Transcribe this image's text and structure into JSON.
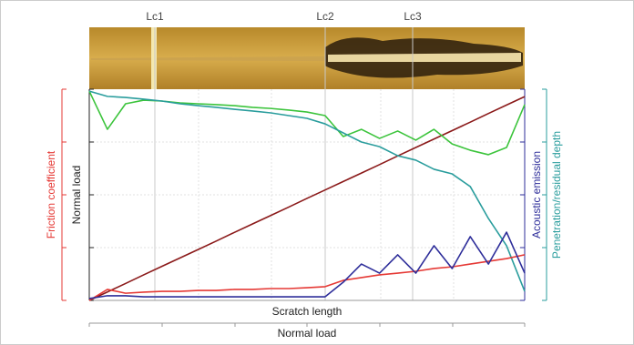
{
  "chart_data": {
    "type": "line",
    "annotations": [
      "Lc1",
      "Lc2",
      "Lc3"
    ],
    "x_label": "Scratch length",
    "x2_label": "Normal load",
    "axes": [
      {
        "label": "Friction coefficient",
        "color": "#e53935"
      },
      {
        "label": "Normal load",
        "color": "#222222"
      },
      {
        "label": "Acoustic emission",
        "color": "#2e2e9a"
      },
      {
        "label": "Penetration/residual depth",
        "color": "#2a9d9d"
      }
    ],
    "ylim": [
      0,
      100
    ],
    "categories": [
      null,
      null,
      null,
      null,
      null,
      null,
      null,
      null,
      null,
      null,
      null,
      null,
      null,
      null,
      null,
      null,
      null,
      null,
      null,
      null,
      null,
      null,
      null,
      null,
      null
    ],
    "series": [
      {
        "color": "#8b1a1a",
        "values": [
          0,
          4,
          8,
          12.1,
          16.1,
          20.1,
          24.1,
          28.1,
          32.2,
          36.2,
          40.2,
          44.2,
          48.3,
          52.3,
          56.3,
          60.3,
          64.3,
          68.4,
          72.4,
          76.4,
          80.4,
          84.4,
          88.5,
          92.5,
          96.5
        ]
      },
      {
        "color": "#3cc43c",
        "values": [
          99.1,
          81.0,
          93.1,
          94.8,
          94.4,
          93.5,
          93.1,
          92.7,
          92.2,
          91.4,
          90.9,
          90.1,
          89.2,
          87.5,
          77.6,
          81.0,
          76.7,
          80.2,
          75.9,
          81.0,
          74.1,
          71.1,
          69.0,
          72.4,
          92.7
        ]
      },
      {
        "color": "#2a9d9d",
        "values": [
          99.1,
          96.6,
          96.1,
          95.3,
          94.4,
          93.1,
          92.2,
          91.4,
          90.5,
          89.7,
          88.8,
          87.5,
          86.2,
          83.6,
          79.3,
          75.0,
          72.8,
          68.5,
          66.4,
          62.1,
          59.9,
          53.9,
          38.8,
          25.9,
          4.3
        ]
      },
      {
        "color": "#e53935",
        "values": [
          0,
          5.2,
          3.4,
          3.9,
          4.3,
          4.3,
          4.7,
          4.7,
          5.2,
          5.2,
          5.6,
          5.6,
          6.0,
          6.5,
          9.5,
          10.8,
          12.1,
          12.9,
          13.8,
          15.1,
          15.9,
          17.2,
          18.5,
          19.8,
          21.6
        ]
      },
      {
        "color": "#2e2e9a",
        "values": [
          0.9,
          2.2,
          2.2,
          1.7,
          1.7,
          1.7,
          1.7,
          1.7,
          1.7,
          1.7,
          1.7,
          1.7,
          1.7,
          1.7,
          8.6,
          17.2,
          12.9,
          21.6,
          12.9,
          25.9,
          15.1,
          30.2,
          17.2,
          32.3,
          12.9
        ]
      }
    ]
  }
}
